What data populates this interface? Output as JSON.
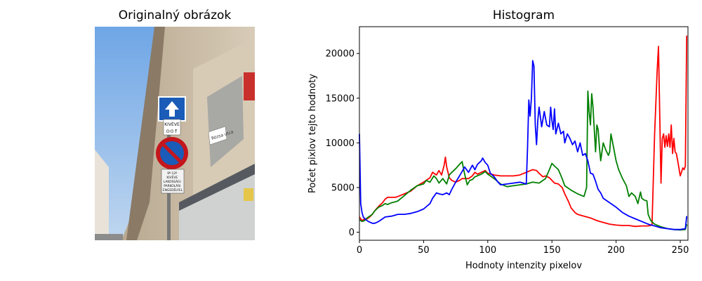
{
  "photo": {
    "title": "Originalný obrázok",
    "sign_text": {
      "kiveve": "KIVÉVE",
      "lower_sign": [
        "9º-12º",
        "KIVÉVE",
        "LAKOSSÁGI",
        "PARKOLÁSI",
        "ENGEDÉLYEL"
      ],
      "street_sign": "Rózsa utca"
    }
  },
  "chart_data": {
    "type": "line",
    "title": "Histogram",
    "xlabel": "Hodnoty intenzity pixelov",
    "ylabel": "Počet pixlov tejto hodnoty",
    "xlim": [
      0,
      256
    ],
    "ylim": [
      -900,
      23000
    ],
    "xticks": [
      0,
      50,
      100,
      150,
      200,
      250
    ],
    "yticks": [
      0,
      5000,
      10000,
      15000,
      20000
    ],
    "grid": false,
    "legend": "none",
    "series": [
      {
        "color": "#ff0000",
        "points": [
          [
            0,
            1700
          ],
          [
            2,
            1300
          ],
          [
            4,
            1500
          ],
          [
            6,
            1500
          ],
          [
            8,
            1700
          ],
          [
            10,
            2000
          ],
          [
            12,
            2400
          ],
          [
            15,
            2900
          ],
          [
            18,
            3300
          ],
          [
            20,
            3700
          ],
          [
            22,
            3900
          ],
          [
            25,
            3900
          ],
          [
            28,
            3900
          ],
          [
            30,
            4000
          ],
          [
            35,
            4300
          ],
          [
            40,
            4600
          ],
          [
            45,
            5200
          ],
          [
            50,
            5600
          ],
          [
            55,
            6100
          ],
          [
            57,
            6700
          ],
          [
            60,
            6400
          ],
          [
            62,
            6900
          ],
          [
            64,
            6400
          ],
          [
            66,
            7500
          ],
          [
            67,
            8400
          ],
          [
            68,
            7300
          ],
          [
            70,
            6100
          ],
          [
            72,
            5800
          ],
          [
            75,
            5600
          ],
          [
            78,
            5800
          ],
          [
            80,
            6000
          ],
          [
            85,
            6000
          ],
          [
            88,
            6300
          ],
          [
            90,
            6700
          ],
          [
            92,
            6500
          ],
          [
            95,
            6700
          ],
          [
            98,
            6900
          ],
          [
            100,
            6600
          ],
          [
            105,
            6400
          ],
          [
            110,
            6300
          ],
          [
            115,
            6300
          ],
          [
            120,
            6300
          ],
          [
            125,
            6400
          ],
          [
            130,
            6700
          ],
          [
            135,
            7000
          ],
          [
            138,
            6900
          ],
          [
            140,
            6600
          ],
          [
            143,
            6200
          ],
          [
            145,
            6300
          ],
          [
            148,
            6100
          ],
          [
            150,
            5800
          ],
          [
            152,
            5500
          ],
          [
            155,
            5400
          ],
          [
            158,
            5000
          ],
          [
            160,
            4300
          ],
          [
            163,
            3400
          ],
          [
            165,
            2700
          ],
          [
            168,
            2200
          ],
          [
            170,
            2000
          ],
          [
            175,
            1800
          ],
          [
            180,
            1600
          ],
          [
            185,
            1300
          ],
          [
            190,
            1100
          ],
          [
            195,
            900
          ],
          [
            200,
            800
          ],
          [
            205,
            750
          ],
          [
            210,
            750
          ],
          [
            215,
            650
          ],
          [
            220,
            700
          ],
          [
            225,
            700
          ],
          [
            228,
            800
          ],
          [
            230,
            11000
          ],
          [
            232,
            18000
          ],
          [
            233,
            20800
          ],
          [
            235,
            5500
          ],
          [
            236,
            10500
          ],
          [
            237,
            11000
          ],
          [
            238,
            9500
          ],
          [
            239,
            10800
          ],
          [
            240,
            9600
          ],
          [
            241,
            11000
          ],
          [
            242,
            9500
          ],
          [
            243,
            12000
          ],
          [
            244,
            8800
          ],
          [
            245,
            10500
          ],
          [
            246,
            9000
          ],
          [
            247,
            8800
          ],
          [
            248,
            8000
          ],
          [
            250,
            6300
          ],
          [
            252,
            7200
          ],
          [
            253,
            7000
          ],
          [
            254,
            7400
          ],
          [
            255,
            22000
          ]
        ]
      },
      {
        "color": "#008000",
        "points": [
          [
            0,
            1400
          ],
          [
            2,
            1200
          ],
          [
            4,
            1300
          ],
          [
            6,
            1600
          ],
          [
            8,
            1800
          ],
          [
            10,
            2000
          ],
          [
            12,
            2400
          ],
          [
            15,
            2800
          ],
          [
            18,
            3000
          ],
          [
            20,
            3200
          ],
          [
            22,
            3100
          ],
          [
            25,
            3300
          ],
          [
            28,
            3400
          ],
          [
            30,
            3500
          ],
          [
            35,
            4100
          ],
          [
            40,
            4700
          ],
          [
            45,
            5200
          ],
          [
            50,
            5400
          ],
          [
            52,
            5800
          ],
          [
            55,
            5600
          ],
          [
            58,
            6300
          ],
          [
            60,
            6000
          ],
          [
            62,
            5500
          ],
          [
            65,
            6000
          ],
          [
            68,
            5400
          ],
          [
            70,
            6400
          ],
          [
            72,
            6700
          ],
          [
            75,
            7100
          ],
          [
            78,
            7600
          ],
          [
            80,
            7900
          ],
          [
            82,
            6500
          ],
          [
            84,
            5300
          ],
          [
            86,
            5800
          ],
          [
            88,
            5900
          ],
          [
            90,
            6200
          ],
          [
            95,
            6500
          ],
          [
            98,
            6800
          ],
          [
            100,
            6500
          ],
          [
            105,
            6000
          ],
          [
            110,
            5400
          ],
          [
            115,
            5100
          ],
          [
            120,
            5200
          ],
          [
            125,
            5300
          ],
          [
            130,
            5400
          ],
          [
            135,
            5600
          ],
          [
            140,
            5500
          ],
          [
            145,
            6000
          ],
          [
            148,
            7000
          ],
          [
            150,
            7700
          ],
          [
            152,
            7400
          ],
          [
            155,
            7000
          ],
          [
            158,
            6000
          ],
          [
            160,
            5200
          ],
          [
            165,
            4700
          ],
          [
            170,
            4300
          ],
          [
            175,
            4000
          ],
          [
            177,
            5000
          ],
          [
            178,
            15800
          ],
          [
            179,
            13500
          ],
          [
            180,
            12000
          ],
          [
            181,
            15500
          ],
          [
            182,
            14000
          ],
          [
            184,
            9000
          ],
          [
            185,
            12000
          ],
          [
            186,
            11500
          ],
          [
            187,
            9500
          ],
          [
            188,
            8000
          ],
          [
            190,
            10000
          ],
          [
            192,
            9200
          ],
          [
            194,
            8600
          ],
          [
            195,
            9000
          ],
          [
            196,
            11000
          ],
          [
            198,
            9500
          ],
          [
            200,
            8000
          ],
          [
            202,
            7000
          ],
          [
            205,
            6000
          ],
          [
            208,
            5200
          ],
          [
            210,
            4000
          ],
          [
            212,
            4400
          ],
          [
            215,
            4000
          ],
          [
            217,
            3200
          ],
          [
            219,
            4500
          ],
          [
            220,
            3800
          ],
          [
            222,
            3600
          ],
          [
            224,
            3500
          ],
          [
            225,
            2000
          ],
          [
            227,
            1300
          ],
          [
            230,
            900
          ],
          [
            235,
            600
          ],
          [
            240,
            400
          ],
          [
            245,
            300
          ],
          [
            250,
            250
          ],
          [
            254,
            300
          ],
          [
            255,
            900
          ]
        ]
      },
      {
        "color": "#0000ff",
        "points": [
          [
            0,
            11000
          ],
          [
            1,
            3200
          ],
          [
            2,
            2200
          ],
          [
            3,
            1700
          ],
          [
            5,
            1400
          ],
          [
            7,
            1200
          ],
          [
            10,
            1000
          ],
          [
            12,
            1000
          ],
          [
            15,
            1200
          ],
          [
            18,
            1500
          ],
          [
            20,
            1700
          ],
          [
            25,
            1800
          ],
          [
            30,
            2000
          ],
          [
            35,
            2000
          ],
          [
            40,
            2100
          ],
          [
            45,
            2300
          ],
          [
            50,
            2600
          ],
          [
            55,
            3200
          ],
          [
            57,
            3800
          ],
          [
            60,
            4400
          ],
          [
            62,
            4300
          ],
          [
            65,
            4200
          ],
          [
            68,
            4400
          ],
          [
            70,
            4200
          ],
          [
            72,
            4800
          ],
          [
            75,
            5600
          ],
          [
            78,
            6300
          ],
          [
            80,
            6800
          ],
          [
            82,
            7300
          ],
          [
            85,
            6700
          ],
          [
            88,
            7500
          ],
          [
            90,
            7000
          ],
          [
            92,
            7600
          ],
          [
            95,
            8000
          ],
          [
            96,
            8300
          ],
          [
            98,
            7800
          ],
          [
            100,
            7500
          ],
          [
            102,
            6600
          ],
          [
            105,
            6200
          ],
          [
            108,
            5600
          ],
          [
            110,
            5300
          ],
          [
            115,
            5400
          ],
          [
            120,
            5500
          ],
          [
            125,
            5600
          ],
          [
            130,
            5400
          ],
          [
            131,
            9500
          ],
          [
            132,
            14800
          ],
          [
            133,
            13000
          ],
          [
            134,
            15000
          ],
          [
            135,
            19200
          ],
          [
            136,
            18600
          ],
          [
            137,
            12000
          ],
          [
            138,
            9800
          ],
          [
            139,
            12500
          ],
          [
            140,
            14000
          ],
          [
            142,
            11800
          ],
          [
            144,
            13500
          ],
          [
            146,
            12000
          ],
          [
            148,
            11800
          ],
          [
            149,
            14000
          ],
          [
            150,
            12500
          ],
          [
            151,
            11500
          ],
          [
            152,
            13800
          ],
          [
            153,
            11000
          ],
          [
            155,
            12200
          ],
          [
            157,
            11000
          ],
          [
            159,
            11300
          ],
          [
            160,
            10000
          ],
          [
            162,
            11000
          ],
          [
            164,
            10500
          ],
          [
            166,
            9800
          ],
          [
            168,
            10200
          ],
          [
            170,
            9000
          ],
          [
            172,
            10000
          ],
          [
            174,
            8600
          ],
          [
            176,
            8800
          ],
          [
            178,
            8000
          ],
          [
            180,
            6600
          ],
          [
            182,
            6500
          ],
          [
            184,
            5700
          ],
          [
            186,
            4800
          ],
          [
            188,
            4400
          ],
          [
            190,
            3800
          ],
          [
            195,
            3300
          ],
          [
            200,
            2800
          ],
          [
            205,
            2200
          ],
          [
            210,
            1800
          ],
          [
            215,
            1500
          ],
          [
            220,
            1200
          ],
          [
            225,
            900
          ],
          [
            230,
            700
          ],
          [
            235,
            500
          ],
          [
            240,
            400
          ],
          [
            245,
            300
          ],
          [
            250,
            300
          ],
          [
            254,
            400
          ],
          [
            255,
            1800
          ]
        ]
      }
    ]
  }
}
